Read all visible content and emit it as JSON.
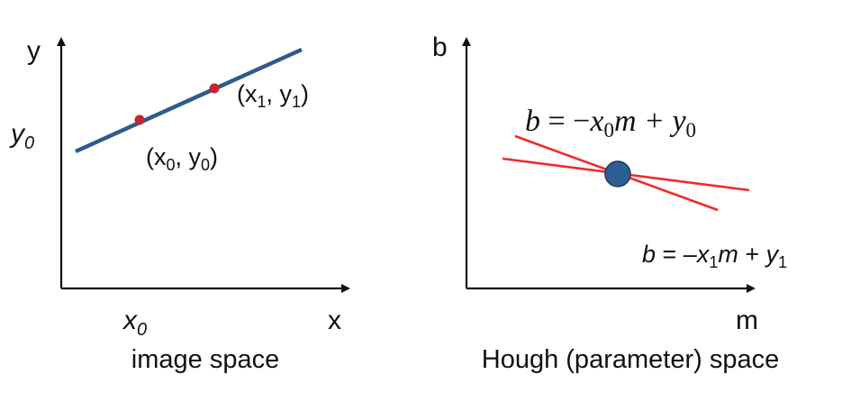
{
  "image_space": {
    "y_axis_label": "y",
    "x_axis_label": "x",
    "y0_tick": "y",
    "y0_tick_sub": "0",
    "x0_tick": "x",
    "x0_tick_sub": "0",
    "point0_label": {
      "open": "(x",
      "sub1": "0",
      "mid": ", y",
      "sub2": "0",
      "close": ")"
    },
    "point1_label": {
      "open": "(x",
      "sub1": "1",
      "mid": ", y",
      "sub2": "1",
      "close": ")"
    },
    "caption": "image space",
    "line_color": "#2e5b8a",
    "point_color": "#c0282d"
  },
  "hough_space": {
    "y_axis_label": "b",
    "x_axis_label": "m",
    "eq0": {
      "lhs": "b",
      "eq": " = −",
      "x": "x",
      "sub": "0",
      "rest": "m + ",
      "y": "y",
      "sub2": "0"
    },
    "eq1": {
      "lhs": "b",
      "eq": " = –",
      "x": "x",
      "sub": "1",
      "m": "m",
      "plus": " + ",
      "y": "y",
      "sub2": "1"
    },
    "caption": "Hough (parameter) space",
    "line_color": "#f02a2a",
    "intersection_color": "#2d5f94"
  }
}
